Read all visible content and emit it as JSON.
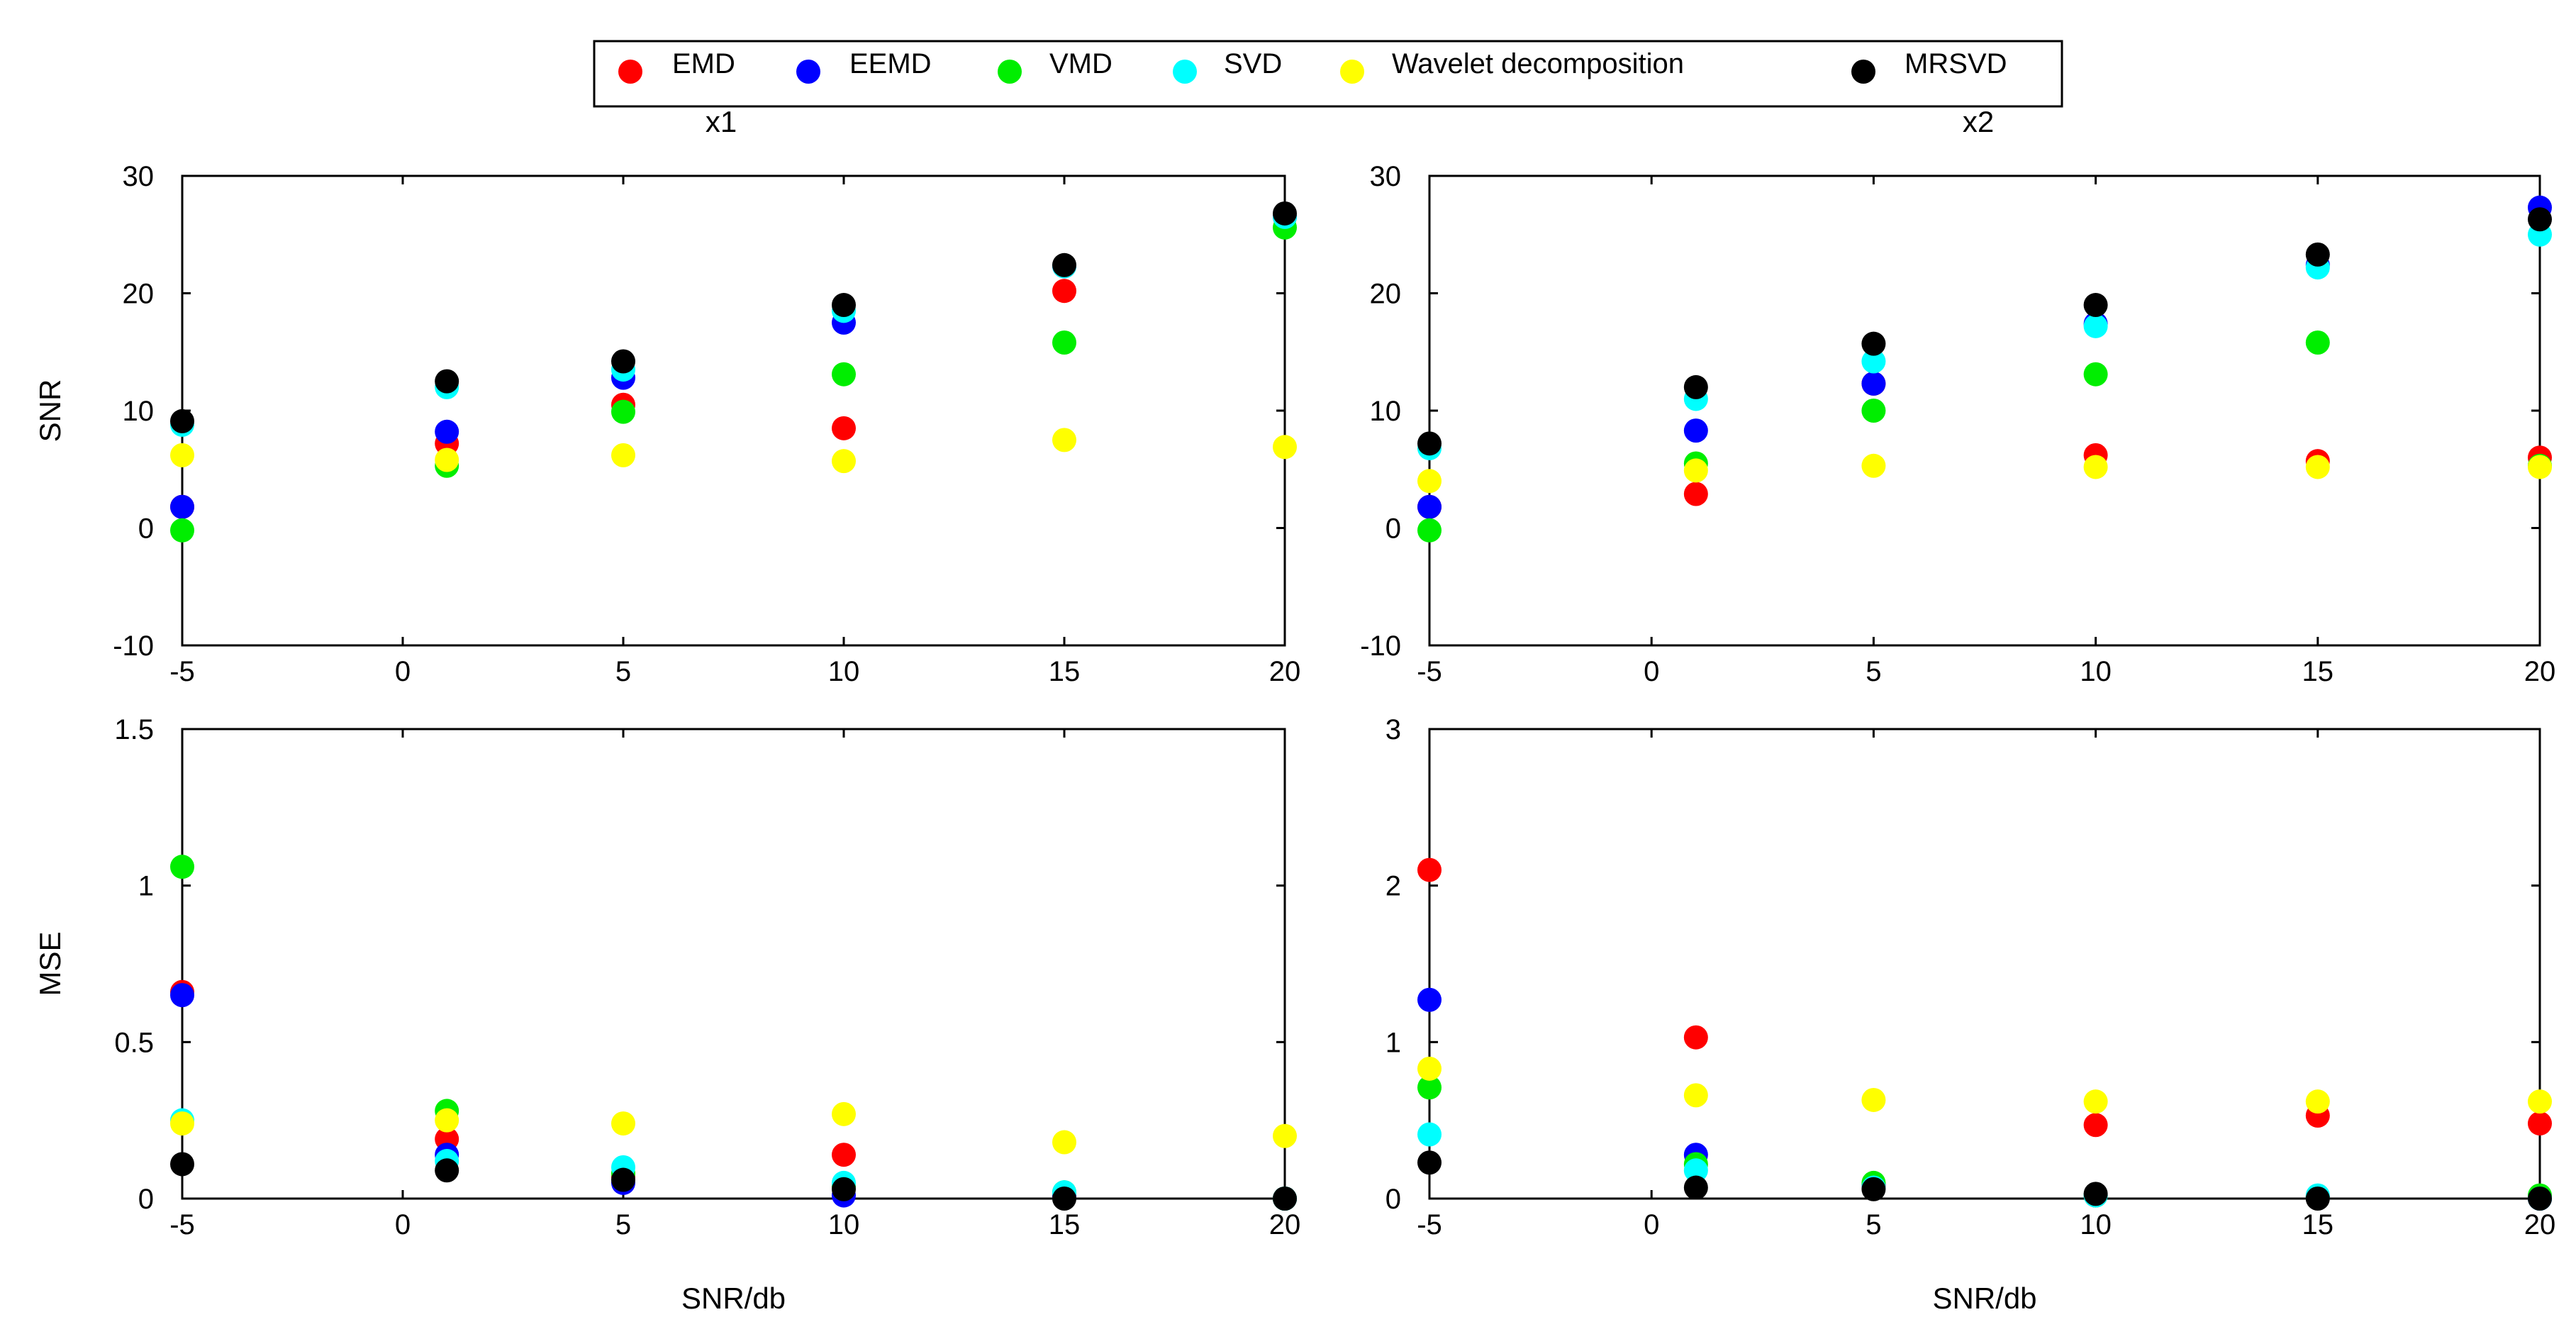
{
  "legend": {
    "entries": [
      {
        "label": "EMD",
        "color": "#ff0000"
      },
      {
        "label": "EEMD",
        "color": "#0000ff"
      },
      {
        "label": "VMD",
        "color": "#00ee00"
      },
      {
        "label": "SVD",
        "color": "#00ffff"
      },
      {
        "label": "Wavelet decomposition",
        "color": "#ffff00"
      },
      {
        "label": "MRSVD",
        "color": "#000000"
      }
    ]
  },
  "chart_data": [
    {
      "type": "scatter",
      "panel": "top-left",
      "title": "x1",
      "xlabel": "",
      "ylabel": "SNR",
      "xlim": [
        -5,
        20
      ],
      "ylim": [
        -10,
        30
      ],
      "xticks": [
        -5,
        0,
        5,
        10,
        15,
        20
      ],
      "yticks": [
        -10,
        0,
        10,
        20,
        30
      ],
      "x": [
        -5,
        1,
        5,
        10,
        15,
        20
      ],
      "series": [
        {
          "name": "EMD",
          "color": "#ff0000",
          "values": [
            1.8,
            7.2,
            10.5,
            8.5,
            20.2,
            26.5
          ]
        },
        {
          "name": "EEMD",
          "color": "#0000ff",
          "values": [
            1.8,
            8.2,
            12.8,
            17.5,
            22.3,
            26.5
          ]
        },
        {
          "name": "VMD",
          "color": "#00ee00",
          "values": [
            -0.2,
            5.3,
            9.9,
            13.1,
            15.8,
            25.6
          ]
        },
        {
          "name": "SVD",
          "color": "#00ffff",
          "values": [
            8.8,
            12.0,
            13.5,
            18.5,
            22.3,
            26.5
          ]
        },
        {
          "name": "Wavelet decomposition",
          "color": "#ffff00",
          "values": [
            6.2,
            5.8,
            6.2,
            5.7,
            7.5,
            6.9
          ]
        },
        {
          "name": "MRSVD",
          "color": "#000000",
          "values": [
            9.1,
            12.5,
            14.2,
            19.0,
            22.4,
            26.8
          ]
        }
      ]
    },
    {
      "type": "scatter",
      "panel": "top-right",
      "title": "x2",
      "xlabel": "",
      "ylabel": "",
      "xlim": [
        -5,
        20
      ],
      "ylim": [
        -10,
        30
      ],
      "xticks": [
        -5,
        0,
        5,
        10,
        15,
        20
      ],
      "yticks": [
        -10,
        0,
        10,
        20,
        30
      ],
      "x": [
        -5,
        1,
        5,
        10,
        15,
        20
      ],
      "series": [
        {
          "name": "EMD",
          "color": "#ff0000",
          "values": [
            1.8,
            2.9,
            12.3,
            6.2,
            5.7,
            6.0
          ]
        },
        {
          "name": "EEMD",
          "color": "#0000ff",
          "values": [
            1.8,
            8.3,
            12.3,
            17.4,
            22.4,
            27.3
          ]
        },
        {
          "name": "VMD",
          "color": "#00ee00",
          "values": [
            -0.2,
            5.5,
            10.0,
            13.1,
            15.8,
            5.3
          ]
        },
        {
          "name": "SVD",
          "color": "#00ffff",
          "values": [
            6.8,
            11.0,
            14.2,
            17.2,
            22.2,
            25.0
          ]
        },
        {
          "name": "Wavelet decomposition",
          "color": "#ffff00",
          "values": [
            4.0,
            4.9,
            5.3,
            5.2,
            5.2,
            5.2
          ]
        },
        {
          "name": "MRSVD",
          "color": "#000000",
          "values": [
            7.2,
            12.0,
            15.7,
            19.0,
            23.3,
            26.3
          ]
        }
      ]
    },
    {
      "type": "scatter",
      "panel": "bottom-left",
      "title": "",
      "xlabel": "SNR/db",
      "ylabel": "MSE",
      "xlim": [
        -5,
        20
      ],
      "ylim": [
        0,
        1.5
      ],
      "xticks": [
        -5,
        0,
        5,
        10,
        15,
        20
      ],
      "yticks": [
        0,
        0.5,
        1,
        1.5
      ],
      "x": [
        -5,
        1,
        5,
        10,
        15,
        20
      ],
      "series": [
        {
          "name": "EMD",
          "color": "#ff0000",
          "values": [
            0.66,
            0.19,
            0.07,
            0.14,
            0.01,
            0.0
          ]
        },
        {
          "name": "EEMD",
          "color": "#0000ff",
          "values": [
            0.65,
            0.14,
            0.05,
            0.01,
            0.01,
            0.0
          ]
        },
        {
          "name": "VMD",
          "color": "#00ee00",
          "values": [
            1.06,
            0.28,
            0.08,
            0.04,
            0.02,
            0.0
          ]
        },
        {
          "name": "SVD",
          "color": "#00ffff",
          "values": [
            0.25,
            0.12,
            0.1,
            0.05,
            0.02,
            0.0
          ]
        },
        {
          "name": "Wavelet decomposition",
          "color": "#ffff00",
          "values": [
            0.24,
            0.25,
            0.24,
            0.27,
            0.18,
            0.2
          ]
        },
        {
          "name": "MRSVD",
          "color": "#000000",
          "values": [
            0.11,
            0.09,
            0.06,
            0.03,
            0.0,
            0.0
          ]
        }
      ]
    },
    {
      "type": "scatter",
      "panel": "bottom-right",
      "title": "",
      "xlabel": "SNR/db",
      "ylabel": "",
      "xlim": [
        -5,
        20
      ],
      "ylim": [
        0,
        3
      ],
      "xticks": [
        -5,
        0,
        5,
        10,
        15,
        20
      ],
      "yticks": [
        0,
        1,
        2,
        3
      ],
      "x": [
        -5,
        1,
        5,
        10,
        15,
        20
      ],
      "series": [
        {
          "name": "EMD",
          "color": "#ff0000",
          "values": [
            2.1,
            1.03,
            0.08,
            0.47,
            0.53,
            0.48
          ]
        },
        {
          "name": "EEMD",
          "color": "#0000ff",
          "values": [
            1.27,
            0.28,
            0.09,
            0.02,
            0.01,
            0.0
          ]
        },
        {
          "name": "VMD",
          "color": "#00ee00",
          "values": [
            0.71,
            0.22,
            0.1,
            0.02,
            0.01,
            0.02
          ]
        },
        {
          "name": "SVD",
          "color": "#00ffff",
          "values": [
            0.41,
            0.18,
            0.07,
            0.02,
            0.02,
            0.0
          ]
        },
        {
          "name": "Wavelet decomposition",
          "color": "#ffff00",
          "values": [
            0.83,
            0.66,
            0.63,
            0.62,
            0.62,
            0.62
          ]
        },
        {
          "name": "MRSVD",
          "color": "#000000",
          "values": [
            0.23,
            0.07,
            0.06,
            0.03,
            0.0,
            0.0
          ]
        }
      ]
    }
  ]
}
